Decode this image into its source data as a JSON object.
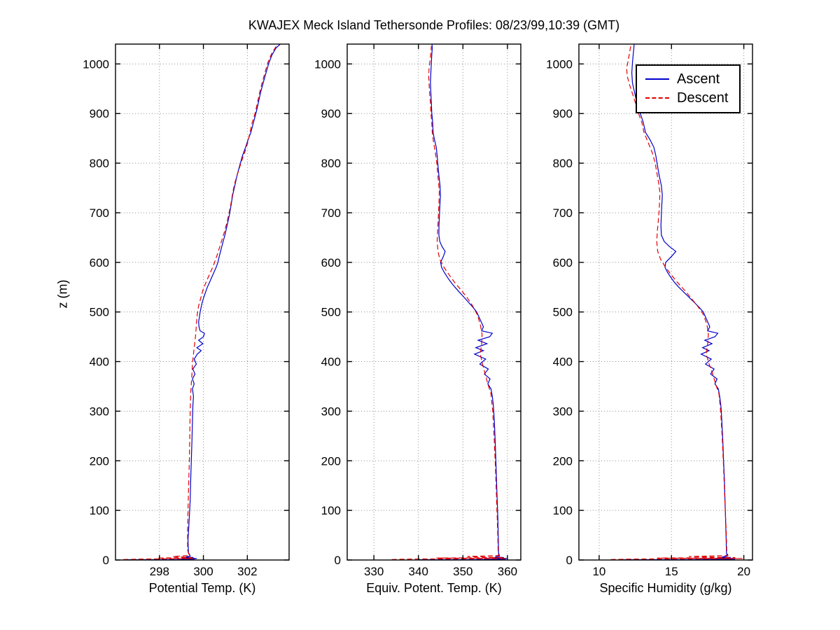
{
  "chart_data": {
    "type": "line",
    "title": "KWAJEX Meck Island Tethersonde Profiles: 08/23/99,10:39 (GMT)",
    "ylabel": "z (m)",
    "ylim": [
      0,
      1040
    ],
    "yticks": [
      0,
      100,
      200,
      300,
      400,
      500,
      600,
      700,
      800,
      900,
      1000
    ],
    "grid": true,
    "legend": {
      "position": "top-right",
      "entries": [
        "Ascent",
        "Descent"
      ]
    },
    "panels": [
      {
        "key": "theta",
        "xlabel": "Potential Temp. (K)",
        "xlim": [
          296.0,
          303.9
        ],
        "xticks": [
          298,
          300,
          302
        ]
      },
      {
        "key": "thetae",
        "xlabel": "Equiv. Potent. Temp. (K)",
        "xlim": [
          324.0,
          363.0
        ],
        "xticks": [
          330,
          340,
          350,
          360
        ]
      },
      {
        "key": "q",
        "xlabel": "Specific Humidity (g/kg)",
        "xlim": [
          8.6,
          20.6
        ],
        "xticks": [
          10,
          15,
          20
        ]
      }
    ],
    "series_point_format": [
      "z_m",
      "potential_temp_K",
      "equiv_potential_temp_K",
      "specific_humidity_g_kg"
    ],
    "series": [
      {
        "name": "Ascent",
        "color": "#0000cc",
        "style": "solid",
        "points": [
          [
            0.5,
            296.4,
            340.0,
            11.6
          ],
          [
            1,
            298.9,
            352.0,
            16.4
          ],
          [
            1.5,
            299.6,
            359.6,
            19.4
          ],
          [
            2,
            299.0,
            356.2,
            18.1
          ],
          [
            3,
            299.7,
            359.9,
            19.3
          ],
          [
            4,
            299.1,
            356.8,
            18.3
          ],
          [
            5,
            299.55,
            359.2,
            19.1
          ],
          [
            6,
            299.2,
            357.2,
            18.5
          ],
          [
            8,
            299.4,
            358.2,
            18.85
          ],
          [
            15,
            299.32,
            358.0,
            18.8
          ],
          [
            40,
            299.3,
            357.95,
            18.78
          ],
          [
            80,
            299.35,
            357.85,
            18.74
          ],
          [
            120,
            299.4,
            357.7,
            18.7
          ],
          [
            160,
            299.42,
            357.55,
            18.66
          ],
          [
            200,
            299.45,
            357.4,
            18.6
          ],
          [
            240,
            299.48,
            357.25,
            18.55
          ],
          [
            280,
            299.5,
            357.05,
            18.48
          ],
          [
            310,
            299.52,
            356.85,
            18.42
          ],
          [
            330,
            299.55,
            356.6,
            18.33
          ],
          [
            345,
            299.5,
            356.3,
            18.24
          ],
          [
            355,
            299.58,
            355.6,
            18.0
          ],
          [
            365,
            299.5,
            356.1,
            18.15
          ],
          [
            375,
            299.62,
            354.8,
            17.7
          ],
          [
            385,
            299.52,
            355.7,
            17.95
          ],
          [
            395,
            299.68,
            353.8,
            17.35
          ],
          [
            405,
            299.58,
            355.1,
            17.75
          ],
          [
            415,
            299.72,
            352.6,
            17.05
          ],
          [
            422,
            299.9,
            354.6,
            17.6
          ],
          [
            428,
            299.7,
            352.9,
            17.15
          ],
          [
            436,
            299.98,
            355.4,
            17.8
          ],
          [
            443,
            299.78,
            353.4,
            17.3
          ],
          [
            450,
            300.0,
            356.0,
            18.0
          ],
          [
            457,
            300.05,
            356.6,
            18.2
          ],
          [
            462,
            299.85,
            354.2,
            17.5
          ],
          [
            470,
            299.8,
            354.6,
            17.65
          ],
          [
            480,
            299.78,
            354.1,
            17.5
          ],
          [
            490,
            299.82,
            353.6,
            17.35
          ],
          [
            500,
            299.85,
            353.1,
            17.2
          ],
          [
            510,
            299.9,
            352.2,
            16.9
          ],
          [
            520,
            299.95,
            351.2,
            16.55
          ],
          [
            530,
            300.02,
            350.2,
            16.2
          ],
          [
            540,
            300.1,
            349.2,
            15.85
          ],
          [
            550,
            300.18,
            348.2,
            15.5
          ],
          [
            560,
            300.28,
            347.3,
            15.2
          ],
          [
            570,
            300.38,
            346.5,
            14.95
          ],
          [
            580,
            300.48,
            345.8,
            14.72
          ],
          [
            590,
            300.58,
            345.2,
            14.55
          ],
          [
            600,
            300.66,
            345.0,
            14.6
          ],
          [
            612,
            300.72,
            345.6,
            15.0
          ],
          [
            622,
            300.78,
            346.0,
            15.3
          ],
          [
            632,
            300.84,
            345.3,
            14.85
          ],
          [
            642,
            300.9,
            344.8,
            14.5
          ],
          [
            655,
            300.98,
            344.6,
            14.3
          ],
          [
            675,
            301.08,
            344.62,
            14.27
          ],
          [
            695,
            301.18,
            344.72,
            14.3
          ],
          [
            715,
            301.26,
            344.82,
            14.33
          ],
          [
            735,
            301.33,
            344.95,
            14.37
          ],
          [
            755,
            301.43,
            344.85,
            14.3
          ],
          [
            775,
            301.53,
            344.6,
            14.15
          ],
          [
            795,
            301.65,
            344.4,
            14.03
          ],
          [
            815,
            301.78,
            344.2,
            13.92
          ],
          [
            832,
            301.92,
            344.0,
            13.78
          ],
          [
            848,
            302.04,
            343.6,
            13.5
          ],
          [
            862,
            302.16,
            343.3,
            13.2
          ],
          [
            882,
            302.28,
            343.2,
            13.05
          ],
          [
            902,
            302.4,
            343.0,
            12.82
          ],
          [
            922,
            302.5,
            342.9,
            12.6
          ],
          [
            942,
            302.6,
            342.8,
            12.45
          ],
          [
            962,
            302.72,
            342.7,
            12.3
          ],
          [
            982,
            302.85,
            342.8,
            12.26
          ],
          [
            1002,
            302.98,
            342.9,
            12.3
          ],
          [
            1018,
            303.12,
            343.0,
            12.35
          ],
          [
            1032,
            303.3,
            343.1,
            12.4
          ],
          [
            1040,
            303.5,
            343.05,
            12.42
          ]
        ]
      },
      {
        "name": "Descent",
        "color": "#e00000",
        "style": "dashed",
        "points": [
          [
            1,
            296.35,
            334.0,
            10.8
          ],
          [
            2,
            297.3,
            338.5,
            12.4
          ],
          [
            3,
            299.55,
            359.8,
            19.9
          ],
          [
            4,
            297.9,
            344.0,
            14.0
          ],
          [
            5,
            299.45,
            359.0,
            19.4
          ],
          [
            7,
            298.6,
            351.0,
            16.2
          ],
          [
            9,
            299.35,
            358.0,
            18.9
          ],
          [
            20,
            299.28,
            357.9,
            18.82
          ],
          [
            60,
            299.28,
            357.8,
            18.78
          ],
          [
            100,
            299.3,
            357.65,
            18.72
          ],
          [
            150,
            299.33,
            357.45,
            18.65
          ],
          [
            200,
            299.36,
            357.25,
            18.58
          ],
          [
            250,
            299.38,
            357.0,
            18.5
          ],
          [
            300,
            299.4,
            356.7,
            18.4
          ],
          [
            335,
            299.42,
            356.3,
            18.28
          ],
          [
            355,
            299.45,
            355.6,
            18.05
          ],
          [
            375,
            299.48,
            355.0,
            17.85
          ],
          [
            395,
            299.5,
            354.4,
            17.6
          ],
          [
            415,
            299.55,
            353.9,
            17.4
          ],
          [
            435,
            299.6,
            354.2,
            17.5
          ],
          [
            455,
            299.65,
            354.3,
            17.55
          ],
          [
            475,
            299.68,
            353.9,
            17.45
          ],
          [
            495,
            299.72,
            353.2,
            17.2
          ],
          [
            512,
            299.78,
            352.2,
            16.8
          ],
          [
            528,
            299.88,
            351.0,
            16.35
          ],
          [
            544,
            299.98,
            349.6,
            15.9
          ],
          [
            560,
            300.12,
            348.1,
            15.4
          ],
          [
            576,
            300.28,
            346.8,
            14.95
          ],
          [
            592,
            300.44,
            345.6,
            14.55
          ],
          [
            606,
            300.56,
            344.8,
            14.25
          ],
          [
            622,
            300.68,
            344.4,
            14.05
          ],
          [
            642,
            300.82,
            344.2,
            13.98
          ],
          [
            662,
            300.96,
            344.3,
            14.02
          ],
          [
            682,
            301.08,
            344.42,
            14.08
          ],
          [
            702,
            301.18,
            344.52,
            14.14
          ],
          [
            722,
            301.27,
            344.62,
            14.18
          ],
          [
            742,
            301.34,
            344.7,
            14.2
          ],
          [
            762,
            301.44,
            344.5,
            14.1
          ],
          [
            782,
            301.58,
            344.3,
            13.98
          ],
          [
            802,
            301.72,
            344.1,
            13.86
          ],
          [
            822,
            301.88,
            343.8,
            13.66
          ],
          [
            842,
            302.02,
            343.4,
            13.38
          ],
          [
            862,
            302.12,
            343.1,
            13.1
          ],
          [
            882,
            302.22,
            343.0,
            12.95
          ],
          [
            902,
            302.36,
            342.8,
            12.7
          ],
          [
            922,
            302.46,
            342.7,
            12.5
          ],
          [
            942,
            302.56,
            342.5,
            12.28
          ],
          [
            960,
            302.66,
            342.4,
            12.08
          ],
          [
            976,
            302.76,
            342.3,
            11.94
          ],
          [
            992,
            302.86,
            342.4,
            11.9
          ],
          [
            1006,
            302.96,
            342.6,
            12.0
          ],
          [
            1022,
            303.12,
            342.8,
            12.1
          ],
          [
            1036,
            303.32,
            342.9,
            12.18
          ]
        ]
      }
    ]
  }
}
